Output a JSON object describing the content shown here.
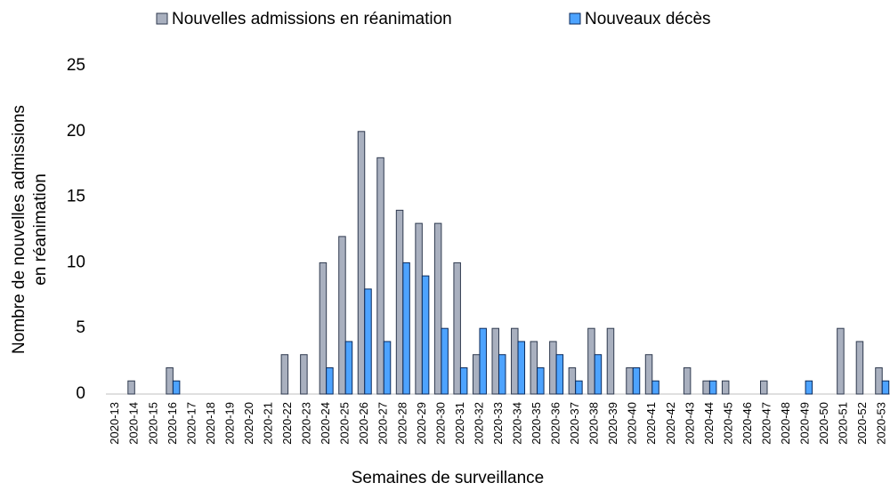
{
  "chart_data": {
    "type": "bar",
    "y_label": [
      "Nombre de nouvelles admissions",
      "en réanimation"
    ],
    "x_label": "Semaines de surveillance",
    "categories": [
      "2020-13",
      "2020-14",
      "2020-15",
      "2020-16",
      "2020-17",
      "2020-18",
      "2020-19",
      "2020-20",
      "2020-21",
      "2020-22",
      "2020-23",
      "2020-24",
      "2020-25",
      "2020-26",
      "2020-27",
      "2020-28",
      "2020-29",
      "2020-30",
      "2020-31",
      "2020-32",
      "2020-33",
      "2020-34",
      "2020-35",
      "2020-36",
      "2020-37",
      "2020-38",
      "2020-39",
      "2020-40",
      "2020-41",
      "2020-42",
      "2020-43",
      "2020-44",
      "2020-45",
      "2020-46",
      "2020-47",
      "2020-48",
      "2020-49",
      "2020-50",
      "2020-51",
      "2020-52",
      "2020-53"
    ],
    "series": [
      {
        "name": "Nouvelles admissions en réanimation",
        "color": "#a9b0bf",
        "stroke": "#2f3a4f",
        "values": [
          0,
          1,
          0,
          2,
          0,
          0,
          0,
          0,
          0,
          3,
          3,
          10,
          12,
          20,
          18,
          14,
          13,
          13,
          10,
          3,
          5,
          5,
          4,
          4,
          2,
          5,
          5,
          2,
          3,
          0,
          2,
          1,
          1,
          0,
          1,
          0,
          0,
          0,
          5,
          4,
          2
        ]
      },
      {
        "name": "Nouveaux décès",
        "color": "#4da3ff",
        "stroke": "#0b2a5b",
        "values": [
          0,
          0,
          0,
          1,
          0,
          0,
          0,
          0,
          0,
          0,
          0,
          2,
          4,
          8,
          4,
          10,
          9,
          5,
          2,
          5,
          3,
          4,
          2,
          3,
          1,
          3,
          0,
          2,
          1,
          0,
          0,
          1,
          0,
          0,
          0,
          0,
          1,
          0,
          0,
          0,
          1
        ]
      }
    ],
    "ylim": [
      0,
      25
    ],
    "yticks": [
      0,
      5,
      10,
      15,
      20,
      25
    ],
    "grid": false
  }
}
